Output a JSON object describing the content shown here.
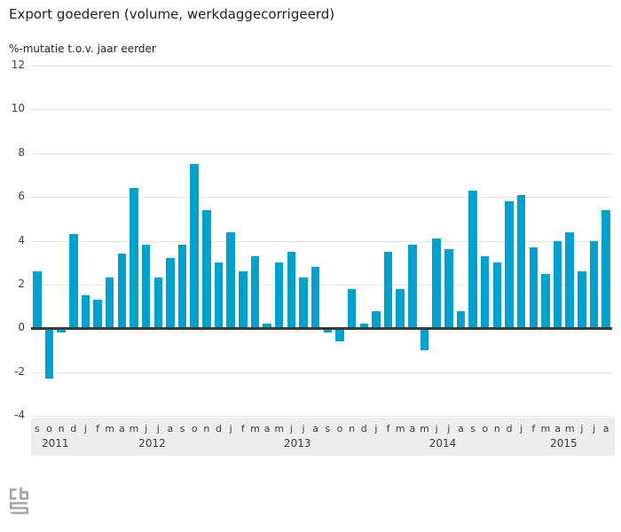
{
  "title": "Export goederen (volume, werkdaggecorrigeerd)",
  "subtitle": "%-mutatie t.o.v. jaar eerder",
  "logo_name": "cbs-logo",
  "colors": {
    "bar": "#00a1cd",
    "zero_line": "#3a3a3a",
    "gridline": "#e4e4e4",
    "axis_band_background": "#ededed",
    "text": "#1f1f1f",
    "tick_text": "#3c3c3c",
    "logo_gray": "#a5a5a5"
  },
  "chart_data": {
    "type": "bar",
    "title": "Export goederen (volume, werkdaggecorrigeerd)",
    "ylabel": "%-mutatie t.o.v. jaar eerder",
    "ylim": [
      -4,
      12
    ],
    "yticks": [
      12,
      10,
      8,
      6,
      4,
      2,
      0,
      -2,
      -4
    ],
    "grid": true,
    "legend": "none",
    "categories": [
      "s",
      "o",
      "n",
      "d",
      "j",
      "f",
      "m",
      "a",
      "m",
      "j",
      "j",
      "a",
      "s",
      "o",
      "n",
      "d",
      "j",
      "f",
      "m",
      "a",
      "m",
      "j",
      "j",
      "a",
      "s",
      "o",
      "n",
      "d",
      "j",
      "f",
      "m",
      "a",
      "m",
      "j",
      "j",
      "a",
      "s",
      "o",
      "n",
      "d",
      "j",
      "f",
      "m",
      "a",
      "m",
      "j",
      "j",
      "a"
    ],
    "year_groups": [
      {
        "label": "2011",
        "start_index": 0,
        "count": 4
      },
      {
        "label": "2012",
        "start_index": 4,
        "count": 12
      },
      {
        "label": "2013",
        "start_index": 16,
        "count": 12
      },
      {
        "label": "2014",
        "start_index": 28,
        "count": 12
      },
      {
        "label": "2015",
        "start_index": 40,
        "count": 8
      }
    ],
    "values": [
      2.6,
      -2.3,
      -0.2,
      4.3,
      1.5,
      1.3,
      2.3,
      3.4,
      6.4,
      3.8,
      2.3,
      3.2,
      3.8,
      7.5,
      5.4,
      3.0,
      4.4,
      2.6,
      3.3,
      0.2,
      3.0,
      3.5,
      2.3,
      2.8,
      -0.2,
      -0.6,
      1.8,
      0.2,
      0.8,
      3.5,
      1.8,
      3.8,
      -1.0,
      4.1,
      3.6,
      0.8,
      6.3,
      3.3,
      3.0,
      5.8,
      6.1,
      3.7,
      2.5,
      4.0,
      4.4,
      2.6,
      4.0,
      5.4
    ]
  }
}
